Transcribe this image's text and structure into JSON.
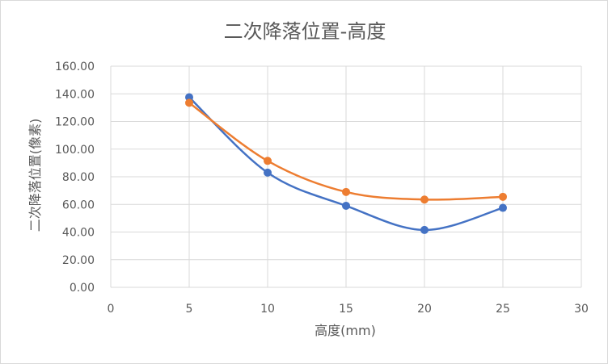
{
  "chart_data": {
    "type": "scatter",
    "title": "二次降落位置-高度",
    "xlabel": "高度(mm)",
    "ylabel": "二次降落位置(像素)",
    "xlim": [
      0,
      30
    ],
    "ylim": [
      0,
      160
    ],
    "x_ticks": [
      "0",
      "5",
      "10",
      "15",
      "20",
      "25",
      "30"
    ],
    "y_ticks": [
      "0.00",
      "20.00",
      "40.00",
      "60.00",
      "80.00",
      "100.00",
      "120.00",
      "140.00",
      "160.00"
    ],
    "grid": "on",
    "legend": "none",
    "smooth": true,
    "series": [
      {
        "color": "#4472c4",
        "x": [
          5,
          10,
          15,
          20,
          25
        ],
        "y": [
          137.5,
          83.0,
          59.0,
          41.5,
          57.5
        ]
      },
      {
        "color": "#ed7d31",
        "x": [
          5,
          10,
          15,
          20,
          25
        ],
        "y": [
          133.5,
          91.5,
          69.0,
          63.5,
          65.5
        ]
      }
    ]
  }
}
